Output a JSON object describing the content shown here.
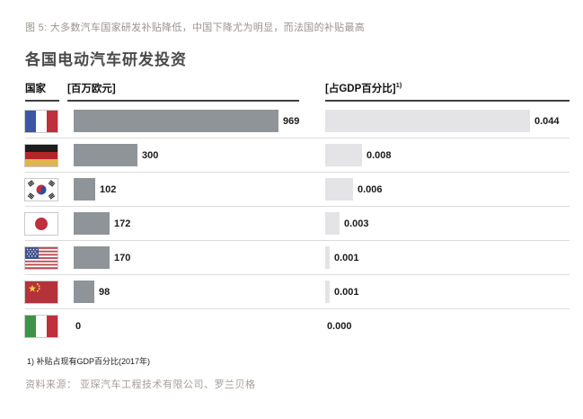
{
  "figure": {
    "caption": "图 5: 大多数汽车国家研发补贴降低，中国下降尤为明显，而法国的补贴最高",
    "title": "各国电动汽车研发投资"
  },
  "table_header": {
    "country": "国家",
    "euro": "[百万欧元]",
    "gdp": "[占GDP百分比]",
    "gdp_footnote_marker": "1)"
  },
  "chart_data": {
    "type": "bar",
    "orientation": "horizontal",
    "grid": false,
    "legend": false,
    "title": "各国电动汽车研发投资",
    "categories": [
      "France",
      "Germany",
      "South Korea",
      "Japan",
      "USA",
      "China",
      "Italy"
    ],
    "flag_icons": [
      "france-flag",
      "germany-flag",
      "south-korea-flag",
      "japan-flag",
      "usa-flag",
      "china-flag",
      "italy-flag"
    ],
    "series": [
      {
        "name": "[百万欧元]",
        "values": [
          969,
          300,
          102,
          172,
          170,
          98,
          0
        ],
        "labels": [
          "969",
          "300",
          "102",
          "172",
          "170",
          "98",
          "0"
        ],
        "xlim": [
          0,
          969
        ],
        "bar_color": "#8f9499"
      },
      {
        "name": "[占GDP百分比] (2017)",
        "values": [
          0.044,
          0.008,
          0.006,
          0.003,
          0.001,
          0.001,
          0.0
        ],
        "labels": [
          "0.044",
          "0.008",
          "0.006",
          "0.003",
          "0.001",
          "0.001",
          "0.000"
        ],
        "xlim": [
          0,
          0.044
        ],
        "bar_color": "#e4e4e7"
      }
    ]
  },
  "footnote": "1) 补贴占现有GDP百分比(2017年)",
  "source": "资料来源： 亚琛汽车工程技术有限公司、罗兰贝格",
  "colors": {
    "bar_left": "#8f9499",
    "bar_right": "#e4e4e7",
    "separator": "#dcdcdc",
    "caption_gray": "#98938d",
    "title_gray": "#4a4a4a"
  }
}
